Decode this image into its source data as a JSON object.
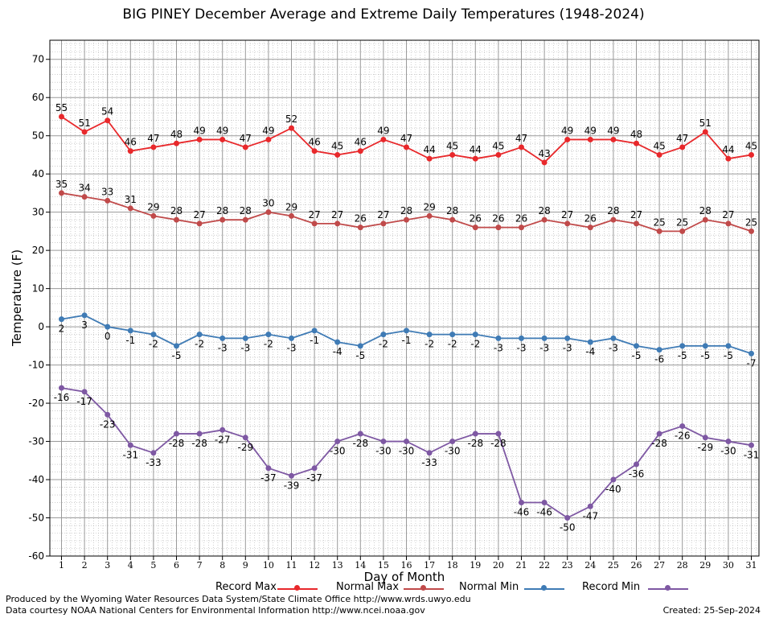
{
  "chart_data": {
    "type": "line",
    "title": "BIG PINEY December Average and Extreme Daily Temperatures (1948-2024)",
    "xlabel": "Day of Month",
    "ylabel": "Temperature (F)",
    "ylim": [
      -60,
      75
    ],
    "yticks": [
      -60,
      -50,
      -40,
      -30,
      -20,
      -10,
      0,
      10,
      20,
      30,
      40,
      50,
      60,
      70
    ],
    "categories": [
      1,
      2,
      3,
      4,
      5,
      6,
      7,
      8,
      9,
      10,
      11,
      12,
      13,
      14,
      15,
      16,
      17,
      18,
      19,
      20,
      21,
      22,
      23,
      24,
      25,
      26,
      27,
      28,
      29,
      30,
      31
    ],
    "grid": true,
    "legend_position": "bottom",
    "series": [
      {
        "name": "Record Max",
        "color": "#e8282b",
        "values": [
          55,
          51,
          54,
          46,
          47,
          48,
          49,
          49,
          47,
          49,
          52,
          46,
          45,
          46,
          49,
          47,
          44,
          45,
          44,
          45,
          47,
          43,
          49,
          49,
          49,
          48,
          45,
          47,
          51,
          44,
          45
        ]
      },
      {
        "name": "Normal Max",
        "color": "#c04a4a",
        "values": [
          35,
          34,
          33,
          31,
          29,
          28,
          27,
          28,
          28,
          30,
          29,
          27,
          27,
          26,
          27,
          28,
          29,
          28,
          26,
          26,
          26,
          28,
          27,
          26,
          28,
          27,
          25,
          25,
          28,
          27,
          25
        ]
      },
      {
        "name": "Normal Min",
        "color": "#3f7bb5",
        "values": [
          2,
          3,
          0,
          -1,
          -2,
          -5,
          -2,
          -3,
          -3,
          -2,
          -3,
          -1,
          -4,
          -5,
          -2,
          -1,
          -2,
          -2,
          -2,
          -3,
          -3,
          -3,
          -3,
          -4,
          -3,
          -5,
          -6,
          -5,
          -5,
          -5,
          -7
        ]
      },
      {
        "name": "Record Min",
        "color": "#7e58a3",
        "values": [
          -16,
          -17,
          -23,
          -31,
          -33,
          -28,
          -28,
          -27,
          -29,
          -37,
          -39,
          -37,
          -30,
          -28,
          -30,
          -30,
          -33,
          -30,
          -28,
          -28,
          -46,
          -46,
          -50,
          -47,
          -40,
          -36,
          -28,
          -26,
          -29,
          -30,
          -31
        ]
      }
    ]
  },
  "footer": {
    "produced_by": "Produced by the Wyoming Water Resources Data System/State Climate Office http://www.wrds.uwyo.edu",
    "data_courtesy": "Data courtesy NOAA National Centers for Environmental Information http://www.ncei.noaa.gov",
    "created": "Created:  25-Sep-2024"
  }
}
